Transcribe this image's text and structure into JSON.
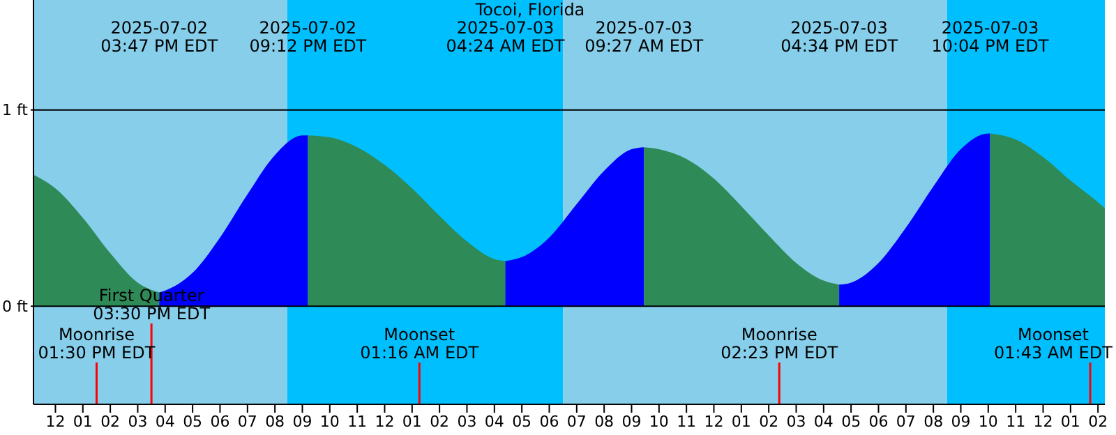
{
  "chart_data": {
    "type": "area",
    "title": "Tocoi, Florida",
    "series": [
      {
        "color": "#2e8b57",
        "x": [
          "2025-07-02T11:12",
          "2025-07-02T12:00",
          "2025-07-02T13:00",
          "2025-07-02T14:00",
          "2025-07-02T15:00",
          "2025-07-02T15:47"
        ],
        "values": [
          0.67,
          0.6,
          0.45,
          0.27,
          0.12,
          0.07
        ]
      },
      {
        "color": "#0000ff",
        "x": [
          "2025-07-02T15:47",
          "2025-07-02T16:00",
          "2025-07-02T17:00",
          "2025-07-02T18:00",
          "2025-07-02T19:00",
          "2025-07-02T20:00",
          "2025-07-02T21:00",
          "2025-07-02T21:12"
        ],
        "values": [
          0.07,
          0.08,
          0.17,
          0.35,
          0.57,
          0.77,
          0.87,
          0.87
        ]
      },
      {
        "color": "#2e8b57",
        "x": [
          "2025-07-02T21:12",
          "2025-07-02T22:00",
          "2025-07-02T23:00",
          "2025-07-03T00:00",
          "2025-07-03T01:00",
          "2025-07-03T02:00",
          "2025-07-03T03:00",
          "2025-07-03T04:00",
          "2025-07-03T04:24"
        ],
        "values": [
          0.87,
          0.86,
          0.81,
          0.72,
          0.6,
          0.46,
          0.33,
          0.24,
          0.23
        ]
      },
      {
        "color": "#0000ff",
        "x": [
          "2025-07-03T04:24",
          "2025-07-03T05:00",
          "2025-07-03T06:00",
          "2025-07-03T07:00",
          "2025-07-03T08:00",
          "2025-07-03T09:00",
          "2025-07-03T09:27"
        ],
        "values": [
          0.23,
          0.25,
          0.35,
          0.52,
          0.69,
          0.8,
          0.81
        ]
      },
      {
        "color": "#2e8b57",
        "x": [
          "2025-07-03T09:27",
          "2025-07-03T10:00",
          "2025-07-03T11:00",
          "2025-07-03T12:00",
          "2025-07-03T13:00",
          "2025-07-03T14:00",
          "2025-07-03T15:00",
          "2025-07-03T16:00",
          "2025-07-03T16:34"
        ],
        "values": [
          0.81,
          0.8,
          0.75,
          0.65,
          0.51,
          0.36,
          0.22,
          0.13,
          0.11
        ]
      },
      {
        "color": "#0000ff",
        "x": [
          "2025-07-03T16:34",
          "2025-07-03T17:00",
          "2025-07-03T18:00",
          "2025-07-03T19:00",
          "2025-07-03T20:00",
          "2025-07-03T21:00",
          "2025-07-03T22:00",
          "2025-07-03T22:04"
        ],
        "values": [
          0.11,
          0.12,
          0.22,
          0.4,
          0.61,
          0.8,
          0.88,
          0.88
        ]
      },
      {
        "color": "#2e8b57",
        "x": [
          "2025-07-03T22:04",
          "2025-07-03T23:00",
          "2025-07-04T00:00",
          "2025-07-04T01:00",
          "2025-07-04T02:00",
          "2025-07-04T02:15"
        ],
        "values": [
          0.88,
          0.85,
          0.76,
          0.64,
          0.53,
          0.5
        ]
      }
    ],
    "xlim": [
      "2025-07-02T11:12",
      "2025-07-04T02:15"
    ],
    "xticks": [
      {
        "value": "2025-07-02T12:00",
        "label": "12"
      },
      {
        "value": "2025-07-02T13:00",
        "label": "01"
      },
      {
        "value": "2025-07-02T14:00",
        "label": "02"
      },
      {
        "value": "2025-07-02T15:00",
        "label": "03"
      },
      {
        "value": "2025-07-02T16:00",
        "label": "04"
      },
      {
        "value": "2025-07-02T17:00",
        "label": "05"
      },
      {
        "value": "2025-07-02T18:00",
        "label": "06"
      },
      {
        "value": "2025-07-02T19:00",
        "label": "07"
      },
      {
        "value": "2025-07-02T20:00",
        "label": "08"
      },
      {
        "value": "2025-07-02T21:00",
        "label": "09"
      },
      {
        "value": "2025-07-02T22:00",
        "label": "10"
      },
      {
        "value": "2025-07-02T23:00",
        "label": "11"
      },
      {
        "value": "2025-07-03T00:00",
        "label": "12"
      },
      {
        "value": "2025-07-03T01:00",
        "label": "01"
      },
      {
        "value": "2025-07-03T02:00",
        "label": "02"
      },
      {
        "value": "2025-07-03T03:00",
        "label": "03"
      },
      {
        "value": "2025-07-03T04:00",
        "label": "04"
      },
      {
        "value": "2025-07-03T05:00",
        "label": "05"
      },
      {
        "value": "2025-07-03T06:00",
        "label": "06"
      },
      {
        "value": "2025-07-03T07:00",
        "label": "07"
      },
      {
        "value": "2025-07-03T08:00",
        "label": "08"
      },
      {
        "value": "2025-07-03T09:00",
        "label": "09"
      },
      {
        "value": "2025-07-03T10:00",
        "label": "10"
      },
      {
        "value": "2025-07-03T11:00",
        "label": "11"
      },
      {
        "value": "2025-07-03T12:00",
        "label": "12"
      },
      {
        "value": "2025-07-03T13:00",
        "label": "01"
      },
      {
        "value": "2025-07-03T14:00",
        "label": "02"
      },
      {
        "value": "2025-07-03T15:00",
        "label": "03"
      },
      {
        "value": "2025-07-03T16:00",
        "label": "04"
      },
      {
        "value": "2025-07-03T17:00",
        "label": "05"
      },
      {
        "value": "2025-07-03T18:00",
        "label": "06"
      },
      {
        "value": "2025-07-03T19:00",
        "label": "07"
      },
      {
        "value": "2025-07-03T20:00",
        "label": "08"
      },
      {
        "value": "2025-07-03T21:00",
        "label": "09"
      },
      {
        "value": "2025-07-03T22:00",
        "label": "10"
      },
      {
        "value": "2025-07-03T23:00",
        "label": "11"
      },
      {
        "value": "2025-07-04T00:00",
        "label": "12"
      },
      {
        "value": "2025-07-04T01:00",
        "label": "01"
      },
      {
        "value": "2025-07-04T02:00",
        "label": "02"
      }
    ],
    "ylim": [
      -0.5,
      1.56
    ],
    "yticks": [
      {
        "value": 0,
        "label": "0 ft"
      },
      {
        "value": 1,
        "label": "1 ft"
      }
    ],
    "grid": "y",
    "bands": [
      {
        "axis": "x",
        "from": "2025-07-02T11:12",
        "to": "2025-07-02T20:27",
        "color": "#87ceeb"
      },
      {
        "axis": "x",
        "from": "2025-07-02T20:27",
        "to": "2025-07-03T06:30",
        "color": "#00bfff"
      },
      {
        "axis": "x",
        "from": "2025-07-03T06:30",
        "to": "2025-07-03T20:30",
        "color": "#87ceeb"
      },
      {
        "axis": "x",
        "from": "2025-07-03T20:30",
        "to": "2025-07-04T02:15",
        "color": "#00bfff"
      }
    ],
    "ref_lines": [
      {
        "axis": "x",
        "value": "2025-07-02T13:30",
        "label": "Moonrise\n01:30 PM EDT",
        "color": "#ff0000"
      },
      {
        "axis": "x",
        "value": "2025-07-02T15:30",
        "label": "First Quarter\n03:30 PM EDT",
        "color": "#ff0000"
      },
      {
        "axis": "x",
        "value": "2025-07-03T01:16",
        "label": "Moonset\n01:16 AM EDT",
        "color": "#ff0000"
      },
      {
        "axis": "x",
        "value": "2025-07-03T14:23",
        "label": "Moonrise\n02:23 PM EDT",
        "color": "#ff0000"
      },
      {
        "axis": "x",
        "value": "2025-07-04T01:43",
        "label": "Moonset\n01:43 AM EDT",
        "color": "#ff0000"
      }
    ],
    "annotations": [
      "2025-07-02\n03:47 PM EDT",
      "2025-07-02\n09:12 PM EDT",
      "2025-07-03\n04:24 AM EDT",
      "2025-07-03\n09:27 AM EDT",
      "2025-07-03\n04:34 PM EDT",
      "2025-07-03\n10:04 PM EDT"
    ]
  }
}
